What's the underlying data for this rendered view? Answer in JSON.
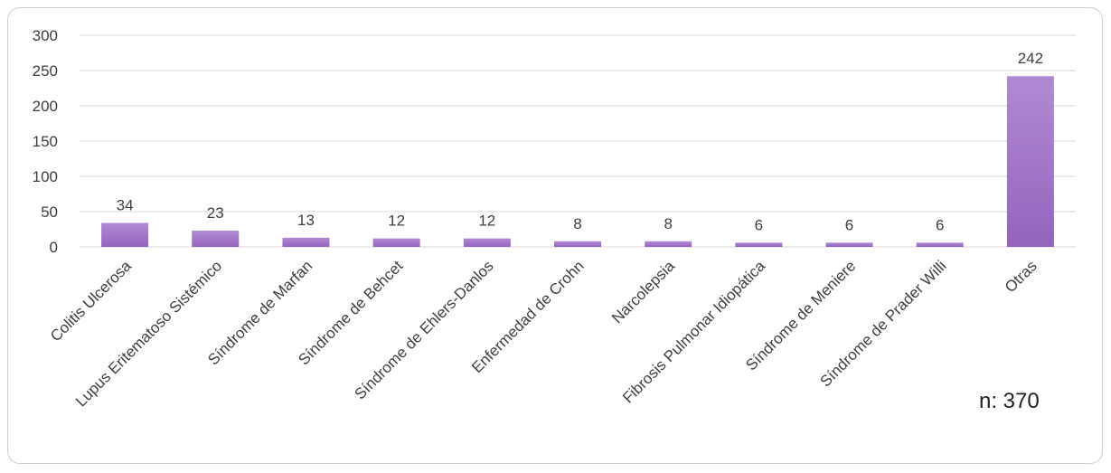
{
  "chart_data": {
    "type": "bar",
    "title": "",
    "xlabel": "",
    "ylabel": "",
    "categories": [
      "Colitis Ulcerosa",
      "Lupus Eritematoso Sistémico",
      "Síndrome de Marfan",
      "Síndrome de Behcet",
      "Síndrome de Ehlers-Danlos",
      "Enfermedad de Crohn",
      "Narcolepsia",
      "Fibrosis Pulmonar Idiopática",
      "Síndrome de Meniere",
      "Síndrome de Prader Willi",
      "Otras"
    ],
    "values": [
      34,
      23,
      13,
      12,
      12,
      8,
      8,
      6,
      6,
      6,
      242
    ],
    "ylim": [
      0,
      300
    ],
    "yticks": [
      0,
      50,
      100,
      150,
      200,
      250,
      300
    ],
    "grid": true,
    "legend": "none",
    "bar_color": "#a77fc8",
    "bar_color_dark": "#9464bd"
  },
  "annotation": {
    "text": "n: 370"
  }
}
